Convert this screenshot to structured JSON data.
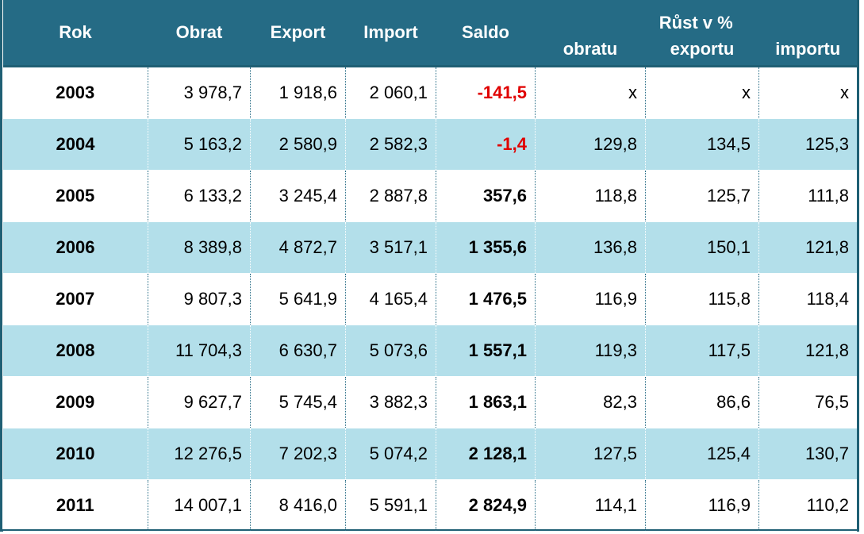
{
  "table": {
    "columns": [
      "Rok",
      "Obrat",
      "Export",
      "Import",
      "Saldo"
    ],
    "group": "Růst v %",
    "subcolumns": [
      "obratu",
      "exportu",
      "importu"
    ],
    "rows": [
      [
        "2003",
        "3 978,7",
        "1 918,6",
        "2 060,1",
        "-141,5",
        "x",
        "x",
        "x"
      ],
      [
        "2004",
        "5 163,2",
        "2 580,9",
        "2 582,3",
        "-1,4",
        "129,8",
        "134,5",
        "125,3"
      ],
      [
        "2005",
        "6 133,2",
        "3 245,4",
        "2 887,8",
        "357,6",
        "118,8",
        "125,7",
        "111,8"
      ],
      [
        "2006",
        "8 389,8",
        "4 872,7",
        "3 517,1",
        "1 355,6",
        "136,8",
        "150,1",
        "121,8"
      ],
      [
        "2007",
        "9 807,3",
        "5 641,9",
        "4 165,4",
        "1 476,5",
        "116,9",
        "115,8",
        "118,4"
      ],
      [
        "2008",
        "11 704,3",
        "6 630,7",
        "5 073,6",
        "1 557,1",
        "119,3",
        "117,5",
        "121,8"
      ],
      [
        "2009",
        "9 627,7",
        "5 745,4",
        "3 882,3",
        "1 863,1",
        "82,3",
        "86,6",
        "76,5"
      ],
      [
        "2010",
        "12 276,5",
        "7 202,3",
        "5 074,2",
        "2 128,1",
        "127,5",
        "125,4",
        "130,7"
      ],
      [
        "2011",
        "14 007,1",
        "8 416,0",
        "5 591,1",
        "2 824,9",
        "114,1",
        "116,9",
        "110,2"
      ]
    ]
  }
}
